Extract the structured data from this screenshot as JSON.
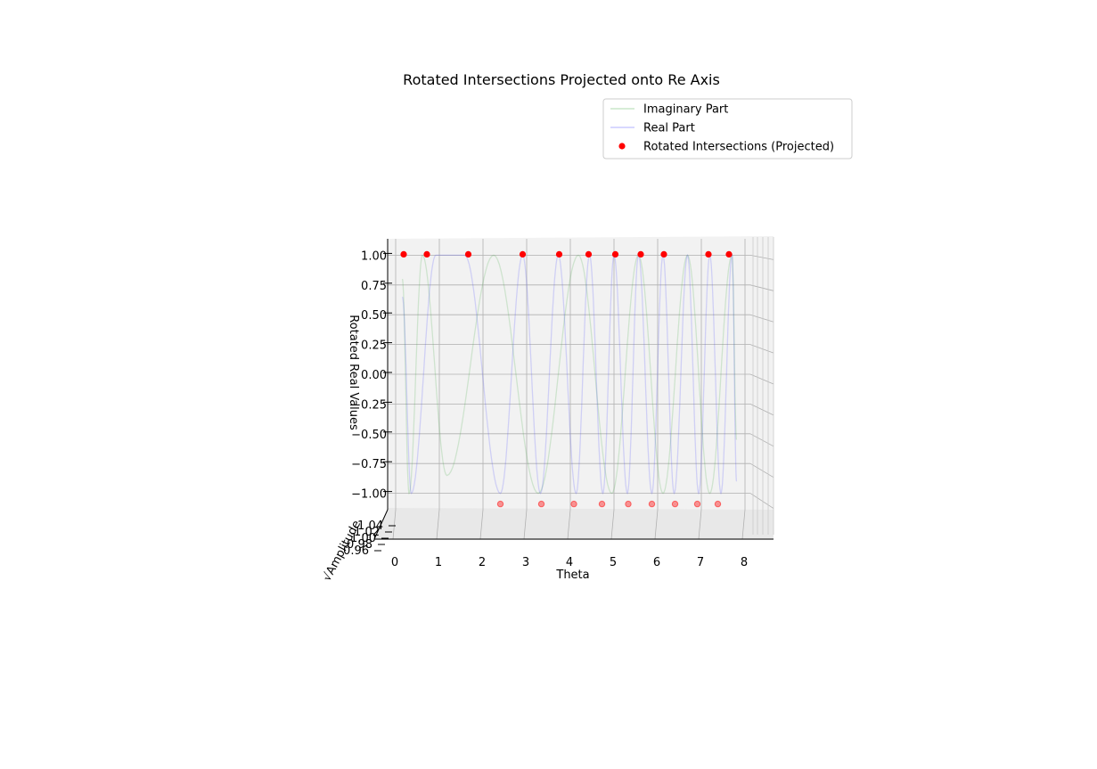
{
  "chart_data": {
    "type": "line",
    "title": "Rotated Intersections Projected onto Re Axis",
    "xlabel": "Theta",
    "ylabel": "Rotated Real Values",
    "zlabel": "√Amplitude",
    "xlim": [
      -0.2,
      8.5
    ],
    "ylim": [
      -1.1,
      1.1
    ],
    "x_ticks": [
      "0",
      "1",
      "2",
      "3",
      "4",
      "5",
      "6",
      "7",
      "8"
    ],
    "y_ticks": [
      "−1.00",
      "−0.75",
      "−0.50",
      "−0.25",
      "0.00",
      "0.25",
      "0.50",
      "0.75",
      "1.00"
    ],
    "z_ticks": [
      "0.96",
      "0.98",
      "1.00",
      "1.02",
      "1.04"
    ],
    "grid": true,
    "legend_position": "upper-right",
    "legend": [
      {
        "label": "Imaginary Part",
        "kind": "line",
        "color": "#2ca02c"
      },
      {
        "label": "Real Part",
        "kind": "line",
        "color": "#3333ff"
      },
      {
        "label": "Rotated Intersections (Projected)",
        "kind": "marker",
        "color": "#ff0000"
      }
    ],
    "series": [
      {
        "name": "Imaginary Part",
        "color": "#2ca02c",
        "opacity": 0.18,
        "x": [
          0.15,
          0.3,
          0.6,
          1.15,
          2.2,
          3.2,
          4.1,
          4.85,
          5.45,
          6.0,
          6.55,
          7.05,
          7.55,
          7.65
        ],
        "y": [
          0.8,
          -1.0,
          1.0,
          -0.85,
          1.0,
          -1.0,
          1.0,
          -1.0,
          1.0,
          -1.0,
          1.0,
          -1.0,
          1.0,
          -0.55
        ]
      },
      {
        "name": "Real Part",
        "color": "#3333ff",
        "opacity": 0.18,
        "x": [
          0.15,
          0.35,
          0.9,
          1.55,
          2.35,
          2.85,
          3.25,
          3.65,
          4.05,
          4.35,
          4.65,
          4.9,
          5.2,
          5.45,
          5.75,
          6.0,
          6.25,
          6.55,
          6.8,
          7.05,
          7.3,
          7.55,
          7.65
        ],
        "y": [
          0.65,
          -1.0,
          1.0,
          1.0,
          -1.0,
          1.0,
          -1.0,
          1.0,
          -1.0,
          1.0,
          -1.0,
          1.0,
          -1.0,
          1.0,
          -1.0,
          1.0,
          -1.0,
          1.0,
          -1.0,
          1.0,
          -1.0,
          1.0,
          -0.9
        ]
      }
    ],
    "points_top": {
      "y": 1.0,
      "x": [
        0.18,
        0.7,
        1.63,
        2.85,
        3.67,
        4.33,
        4.93,
        5.5,
        6.02,
        7.02,
        7.48
      ],
      "color": "#ff0000"
    },
    "points_bottom": {
      "y": -1.0,
      "x": [
        2.35,
        3.27,
        4.0,
        4.63,
        5.22,
        5.75,
        6.27,
        6.77,
        7.23
      ],
      "color": "#ff0000",
      "opacity": 0.4
    }
  }
}
